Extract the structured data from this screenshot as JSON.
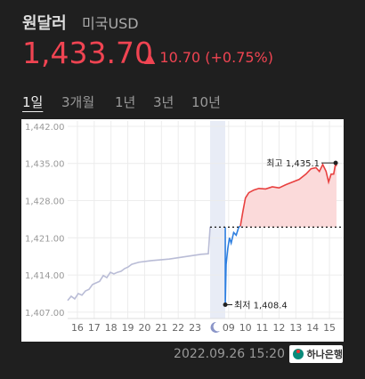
{
  "header": {
    "title": "원달러",
    "subtitle": "미국USD",
    "price": "1,433.70",
    "change": "▲ 10.70 (+0.75%)"
  },
  "tabs": [
    "1일",
    "3개월",
    "1년",
    "3년",
    "10년"
  ],
  "chart_data": {
    "type": "line",
    "xlim": [
      -0.58,
      15.42
    ],
    "ylim": [
      1405.8,
      1443
    ],
    "xticks": [
      {
        "value": 0,
        "label": "16"
      },
      {
        "value": 1,
        "label": "17"
      },
      {
        "value": 2,
        "label": "18"
      },
      {
        "value": 3,
        "label": "19"
      },
      {
        "value": 4,
        "label": "20"
      },
      {
        "value": 5,
        "label": "21"
      },
      {
        "value": 6,
        "label": "22"
      },
      {
        "value": 7,
        "label": "23"
      },
      {
        "value": 9,
        "label": "09"
      },
      {
        "value": 10,
        "label": "10"
      },
      {
        "value": 11,
        "label": "11"
      },
      {
        "value": 12,
        "label": "12"
      },
      {
        "value": 13,
        "label": "13"
      },
      {
        "value": 14,
        "label": "14"
      },
      {
        "value": 15,
        "label": "15"
      }
    ],
    "yticks": [
      {
        "value": 1442,
        "label": "1,442.00"
      },
      {
        "value": 1435,
        "label": "1,435.00"
      },
      {
        "value": 1428,
        "label": "1,428.00"
      },
      {
        "value": 1421,
        "label": "1,421.00"
      },
      {
        "value": 1414,
        "label": "1,414.00"
      },
      {
        "value": 1407,
        "label": "1,407.00"
      }
    ],
    "grid": true,
    "reference": 1423.0,
    "series": [
      {
        "color": "#b9bcd6",
        "x": [
          -0.58,
          -0.37,
          -0.16,
          0.05,
          0.27,
          0.48,
          0.69,
          0.9,
          1.11,
          1.32,
          1.54,
          1.75,
          1.96,
          2.17,
          2.38,
          2.6,
          2.81,
          3.02,
          3.23,
          3.66,
          4.4,
          5.46,
          6.52,
          7.37,
          7.79,
          7.9
        ],
        "values": [
          1409.2,
          1410.0,
          1409.5,
          1410.5,
          1410.2,
          1411.0,
          1411.3,
          1412.2,
          1412.5,
          1412.8,
          1413.9,
          1413.5,
          1414.5,
          1414.2,
          1414.5,
          1414.7,
          1415.2,
          1415.5,
          1416.0,
          1416.4,
          1416.7,
          1417.0,
          1417.5,
          1417.9,
          1418.0,
          1423.1
        ]
      },
      {
        "color": "#2e7fe0",
        "x": [
          8.8,
          8.8,
          8.85,
          8.95,
          9.05,
          9.15,
          9.3,
          9.45,
          9.6,
          9.7
        ],
        "values": [
          1423.0,
          1408.4,
          1416,
          1419,
          1421,
          1420,
          1422,
          1421.5,
          1423.0,
          1423.2
        ]
      },
      {
        "color": "#e8403f",
        "fill": "#fbdada",
        "x": [
          9.7,
          9.85,
          10.0,
          10.2,
          10.5,
          10.8,
          11.2,
          11.6,
          12.0,
          12.4,
          12.8,
          13.2,
          13.6,
          13.9,
          14.2,
          14.4,
          14.6,
          14.8,
          14.95,
          15.1,
          15.25,
          15.37,
          15.42
        ],
        "values": [
          1423.2,
          1426,
          1428.5,
          1429.5,
          1430,
          1430.3,
          1430.2,
          1430.6,
          1430.4,
          1431,
          1431.5,
          1432,
          1433,
          1434,
          1434.2,
          1433.5,
          1434.8,
          1433.5,
          1431.5,
          1433,
          1433,
          1435.1,
          1434.5
        ]
      }
    ],
    "annotations": [
      {
        "label": "최고 1,435.1",
        "x": 15.37,
        "value": 1435.1
      },
      {
        "label": "최저 1,408.4",
        "x": 8.8,
        "value": 1408.4
      }
    ]
  },
  "footer": {
    "timestamp": "2022.09.26 15:20",
    "bank": "하나은행"
  }
}
